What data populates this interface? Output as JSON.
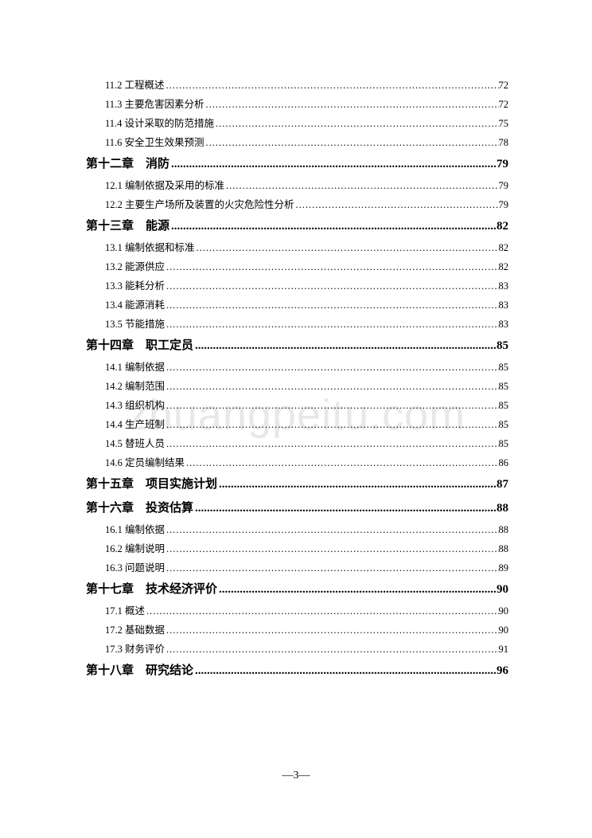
{
  "watermark": "zhuangpeitu.com",
  "page_number": "―3―",
  "text_color": "#000000",
  "watermark_color": "#e8e8e8",
  "background_color": "#ffffff",
  "sub_fontsize": 12.5,
  "chapter_fontsize": 15,
  "toc": [
    {
      "type": "sub",
      "label": "11.2 工程概述",
      "page": "72"
    },
    {
      "type": "sub",
      "label": "11.3 主要危害因素分析",
      "page": "72"
    },
    {
      "type": "sub",
      "label": "11.4 设计采取的防范措施",
      "page": "75"
    },
    {
      "type": "sub",
      "label": "11.6 安全卫生效果预测",
      "page": "78"
    },
    {
      "type": "chapter",
      "label": "第十二章　消防",
      "page": "79"
    },
    {
      "type": "sub",
      "label": "12.1 编制依据及采用的标准",
      "page": "79"
    },
    {
      "type": "sub",
      "label": "12.2 主要生产场所及装置的火灾危险性分析",
      "page": "79"
    },
    {
      "type": "chapter",
      "label": "第十三章　能源",
      "page": "82"
    },
    {
      "type": "sub",
      "label": "13.1 编制依据和标准",
      "page": "82"
    },
    {
      "type": "sub",
      "label": "13.2 能源供应",
      "page": "82"
    },
    {
      "type": "sub",
      "label": "13.3 能耗分析",
      "page": "83"
    },
    {
      "type": "sub",
      "label": "13.4 能源消耗",
      "page": "83"
    },
    {
      "type": "sub",
      "label": "13.5 节能措施",
      "page": "83"
    },
    {
      "type": "chapter",
      "label": "第十四章　职工定员",
      "page": "85"
    },
    {
      "type": "sub",
      "label": "14.1 编制依据",
      "page": "85"
    },
    {
      "type": "sub",
      "label": "14.2 编制范围",
      "page": "85"
    },
    {
      "type": "sub",
      "label": "14.3 组织机构",
      "page": "85"
    },
    {
      "type": "sub",
      "label": "14.4 生产班制",
      "page": "85"
    },
    {
      "type": "sub",
      "label": "14.5 替班人员",
      "page": "85"
    },
    {
      "type": "sub",
      "label": "14.6 定员编制结果",
      "page": "86"
    },
    {
      "type": "chapter",
      "label": "第十五章　项目实施计划",
      "page": "87"
    },
    {
      "type": "chapter",
      "label": "第十六章　投资估算",
      "page": "88"
    },
    {
      "type": "sub",
      "label": "16.1 编制依据",
      "page": "88"
    },
    {
      "type": "sub",
      "label": "16.2 编制说明",
      "page": "88"
    },
    {
      "type": "sub",
      "label": "16.3 问题说明",
      "page": "89"
    },
    {
      "type": "chapter",
      "label": "第十七章　技术经济评价",
      "page": "90"
    },
    {
      "type": "sub",
      "label": "17.1 概述",
      "page": "90"
    },
    {
      "type": "sub",
      "label": "17.2 基础数据",
      "page": "90"
    },
    {
      "type": "sub",
      "label": "17.3 财务评价",
      "page": "91"
    },
    {
      "type": "chapter",
      "label": "第十八章　研究结论",
      "page": "96"
    }
  ]
}
